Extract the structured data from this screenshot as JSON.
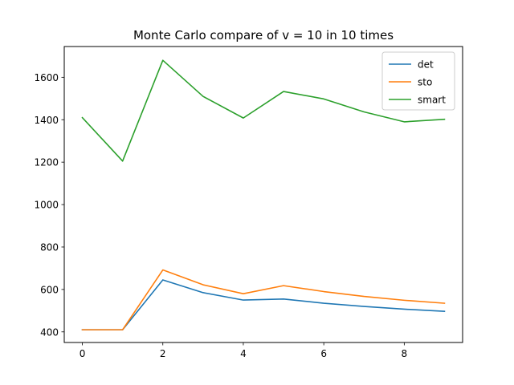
{
  "chart_data": {
    "type": "line",
    "title": "Monte Carlo compare of v = 10 in 10 times",
    "xlabel": "",
    "ylabel": "",
    "x": [
      0,
      1,
      2,
      3,
      4,
      5,
      6,
      7,
      8,
      9
    ],
    "xlim": [
      -0.45,
      9.45
    ],
    "ylim": [
      350,
      1745
    ],
    "xticks": [
      0,
      2,
      4,
      6,
      8
    ],
    "yticks": [
      400,
      600,
      800,
      1000,
      1200,
      1400,
      1600
    ],
    "grid": false,
    "legend_position": "top-right",
    "series": [
      {
        "name": "det",
        "color": "#1f77b4",
        "values": [
          410,
          410,
          645,
          585,
          550,
          555,
          535,
          520,
          507,
          497
        ]
      },
      {
        "name": "sto",
        "color": "#ff7f0e",
        "values": [
          410,
          410,
          692,
          622,
          580,
          618,
          590,
          567,
          549,
          535
        ]
      },
      {
        "name": "smart",
        "color": "#2ca02c",
        "values": [
          1410,
          1205,
          1680,
          1510,
          1408,
          1533,
          1498,
          1437,
          1390,
          1402
        ]
      }
    ]
  }
}
